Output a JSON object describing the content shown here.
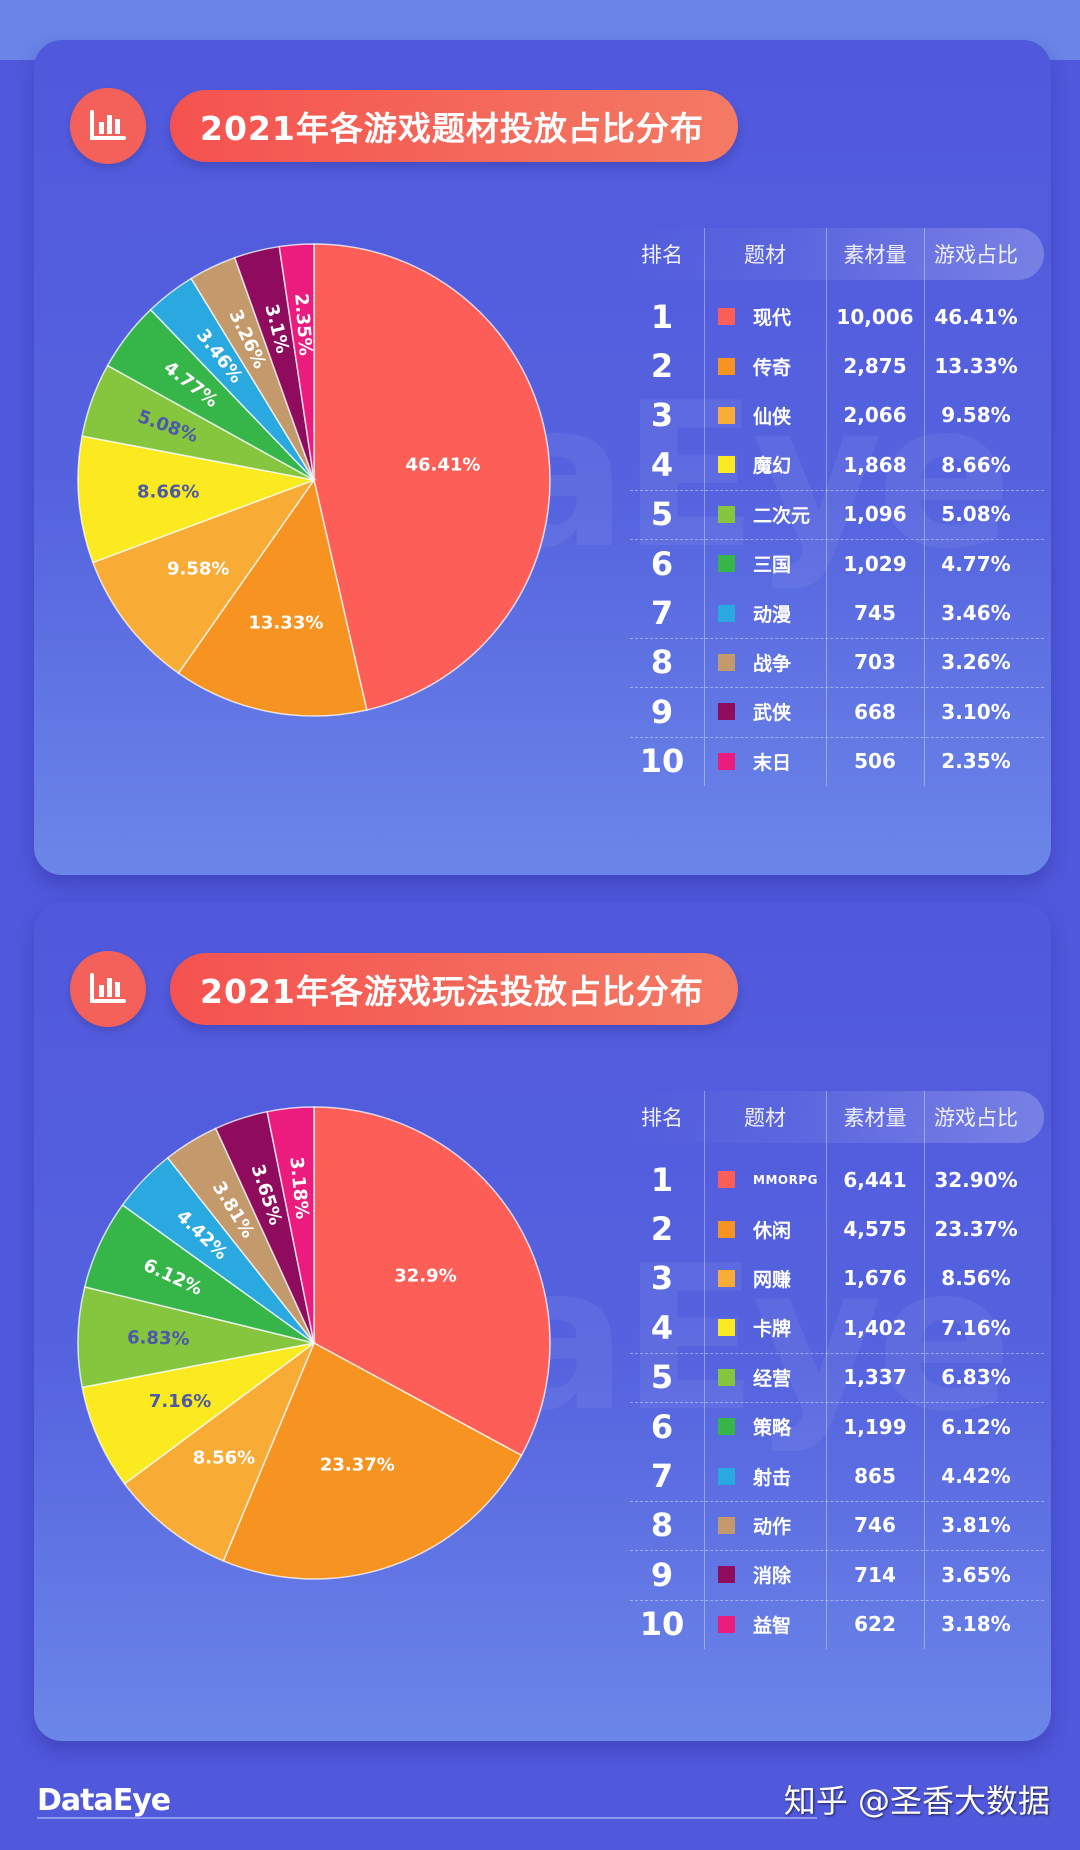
{
  "footer": {
    "brand": "DataEye",
    "credit": "知乎 @圣香大数据"
  },
  "watermark": "DataEye",
  "palette": [
    "#fd5f58",
    "#f79321",
    "#f8ac35",
    "#fbea1f",
    "#86c53e",
    "#36b549",
    "#2aa9e1",
    "#c49a6c",
    "#8f0b5d",
    "#ec1c7f"
  ],
  "table_headers": {
    "rank": "排名",
    "name": "题材",
    "qty": "素材量",
    "pct": "游戏占比"
  },
  "chart_data": [
    {
      "type": "pie",
      "title": "2021年各游戏题材投放占比分布",
      "categories": [
        "现代",
        "传奇",
        "仙侠",
        "魔幻",
        "二次元",
        "三国",
        "动漫",
        "战争",
        "武侠",
        "末日"
      ],
      "values": [
        46.41,
        13.33,
        9.58,
        8.66,
        5.08,
        4.77,
        3.46,
        3.26,
        3.1,
        2.35
      ],
      "counts": [
        10006,
        2875,
        2066,
        1868,
        1096,
        1029,
        745,
        703,
        668,
        506
      ],
      "slice_labels": [
        "46.41%",
        "13.33%",
        "9.58%",
        "8.66%",
        "5.08%",
        "4.77%",
        "3.46%",
        "3.26%",
        "3.1%",
        "2.35%"
      ],
      "start_angle": "12 o'clock",
      "direction": "clockwise",
      "legend_position": "right-table",
      "table_rows": [
        {
          "rank": "1",
          "name": "现代",
          "qty": "10,006",
          "pct": "46.41%"
        },
        {
          "rank": "2",
          "name": "传奇",
          "qty": "2,875",
          "pct": "13.33%"
        },
        {
          "rank": "3",
          "name": "仙侠",
          "qty": "2,066",
          "pct": "9.58%"
        },
        {
          "rank": "4",
          "name": "魔幻",
          "qty": "1,868",
          "pct": "8.66%"
        },
        {
          "rank": "5",
          "name": "二次元",
          "qty": "1,096",
          "pct": "5.08%"
        },
        {
          "rank": "6",
          "name": "三国",
          "qty": "1,029",
          "pct": "4.77%"
        },
        {
          "rank": "7",
          "name": "动漫",
          "qty": "745",
          "pct": "3.46%"
        },
        {
          "rank": "8",
          "name": "战争",
          "qty": "703",
          "pct": "3.26%"
        },
        {
          "rank": "9",
          "name": "武侠",
          "qty": "668",
          "pct": "3.10%"
        },
        {
          "rank": "10",
          "name": "末日",
          "qty": "506",
          "pct": "2.35%"
        }
      ]
    },
    {
      "type": "pie",
      "title": "2021年各游戏玩法投放占比分布",
      "categories": [
        "MMORPG",
        "休闲",
        "网赚",
        "卡牌",
        "经营",
        "策略",
        "射击",
        "动作",
        "消除",
        "益智"
      ],
      "values": [
        32.9,
        23.37,
        8.56,
        7.16,
        6.83,
        6.12,
        4.42,
        3.81,
        3.65,
        3.18
      ],
      "counts": [
        6441,
        4575,
        1676,
        1402,
        1337,
        1199,
        865,
        746,
        714,
        622
      ],
      "slice_labels": [
        "32.9%",
        "23.37%",
        "8.56%",
        "7.16%",
        "6.83%",
        "6.12%",
        "4.42%",
        "3.81%",
        "3.65%",
        "3.18%"
      ],
      "start_angle": "12 o'clock",
      "direction": "clockwise",
      "legend_position": "right-table",
      "table_rows": [
        {
          "rank": "1",
          "name": "MMORPG",
          "qty": "6,441",
          "pct": "32.90%"
        },
        {
          "rank": "2",
          "name": "休闲",
          "qty": "4,575",
          "pct": "23.37%"
        },
        {
          "rank": "3",
          "name": "网赚",
          "qty": "1,676",
          "pct": "8.56%"
        },
        {
          "rank": "4",
          "name": "卡牌",
          "qty": "1,402",
          "pct": "7.16%"
        },
        {
          "rank": "5",
          "name": "经营",
          "qty": "1,337",
          "pct": "6.83%"
        },
        {
          "rank": "6",
          "name": "策略",
          "qty": "1,199",
          "pct": "6.12%"
        },
        {
          "rank": "7",
          "name": "射击",
          "qty": "865",
          "pct": "4.42%"
        },
        {
          "rank": "8",
          "name": "动作",
          "qty": "746",
          "pct": "3.81%"
        },
        {
          "rank": "9",
          "name": "消除",
          "qty": "714",
          "pct": "3.65%"
        },
        {
          "rank": "10",
          "name": "益智",
          "qty": "622",
          "pct": "3.18%"
        }
      ]
    }
  ]
}
